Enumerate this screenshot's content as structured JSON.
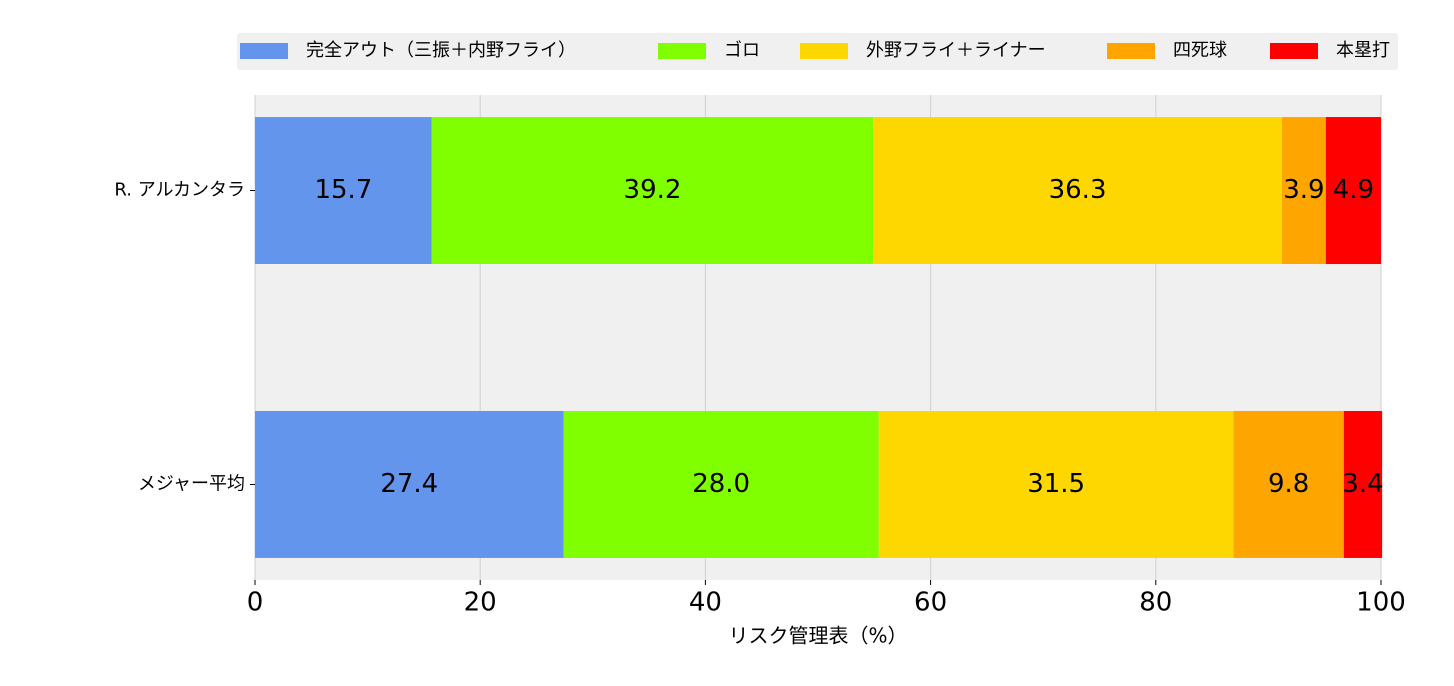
{
  "chart_data": {
    "type": "stacked-barh",
    "xlabel": "リスク管理表（%）",
    "categories": [
      "R. アルカンタラ",
      "メジャー平均"
    ],
    "series": [
      {
        "name": "完全アウト（三振＋内野フライ）",
        "color": "#6495ed",
        "values": [
          15.7,
          27.4
        ]
      },
      {
        "name": "ゴロ",
        "color": "#7fff00",
        "values": [
          39.2,
          28.0
        ],
        "value_labels": [
          "39.2",
          "28.0"
        ]
      },
      {
        "name": "外野フライ＋ライナー",
        "color": "#ffd700",
        "values": [
          36.3,
          31.5
        ]
      },
      {
        "name": "四死球",
        "color": "#ffa500",
        "values": [
          3.9,
          9.8
        ]
      },
      {
        "name": "本塁打",
        "color": "#ff0000",
        "values": [
          4.9,
          3.4
        ]
      }
    ],
    "xlim": [
      0,
      100
    ],
    "xticks": [
      0,
      20,
      40,
      60,
      80,
      100
    ],
    "grid": true,
    "legend": "top"
  }
}
